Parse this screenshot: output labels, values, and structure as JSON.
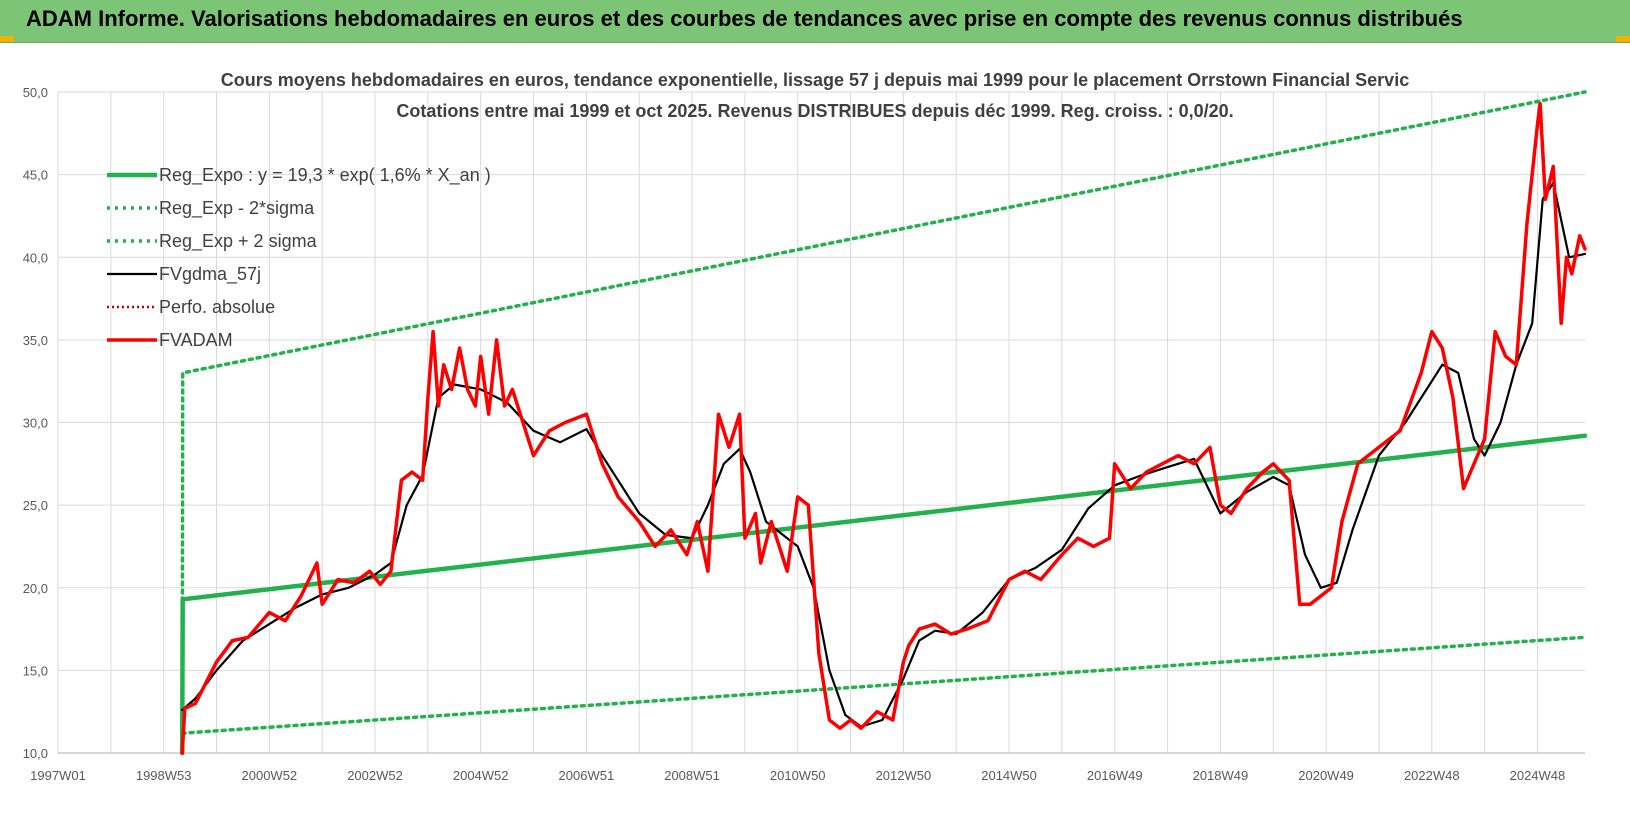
{
  "header": {
    "title": "ADAM Informe. Valorisations hebdomadaires en euros et des courbes de tendances avec prise en compte des revenus connus distribués"
  },
  "colors": {
    "header_bg": "#7cc576",
    "reg_expo": "#22b14c",
    "fvgdma": "#000000",
    "perfo": "#c00000",
    "fvadam": "#ff0000",
    "grid": "#d9d9d9"
  },
  "chart_data": {
    "type": "line",
    "title_line1": "Cours moyens hebdomadaires en euros, tendance exponentielle, lissage 57 j depuis mai 1999 pour le placement Orrstown Financial Servic",
    "title_line2": "Cotations entre mai 1999 et oct 2025. Revenus DISTRIBUES depuis déc 1999. Reg. croiss. : 0,0/20.",
    "xlabel": "",
    "ylabel": "",
    "ylim": [
      10,
      50
    ],
    "xlim": [
      1997.0,
      2025.9
    ],
    "grid": true,
    "legend_position": "top-left",
    "y_ticks": [
      "10,0",
      "15,0",
      "20,0",
      "25,0",
      "30,0",
      "35,0",
      "40,0",
      "45,0",
      "50,0"
    ],
    "x_ticks": [
      {
        "label": "1997W01",
        "x": 1997.0
      },
      {
        "label": "1998W53",
        "x": 1999.0
      },
      {
        "label": "2000W52",
        "x": 2001.0
      },
      {
        "label": "2002W52",
        "x": 2003.0
      },
      {
        "label": "2004W52",
        "x": 2005.0
      },
      {
        "label": "2006W51",
        "x": 2007.0
      },
      {
        "label": "2008W51",
        "x": 2009.0
      },
      {
        "label": "2010W50",
        "x": 2011.0
      },
      {
        "label": "2012W50",
        "x": 2013.0
      },
      {
        "label": "2014W50",
        "x": 2015.0
      },
      {
        "label": "2016W49",
        "x": 2017.0
      },
      {
        "label": "2018W49",
        "x": 2019.0
      },
      {
        "label": "2020W49",
        "x": 2021.0
      },
      {
        "label": "2022W48",
        "x": 2023.0
      },
      {
        "label": "2024W48",
        "x": 2025.0
      }
    ],
    "series": [
      {
        "name": "Reg_Expo : y = 19,3 * exp( 1,6% *  X_an )",
        "style": "solid-green",
        "x": [
          1999.35,
          1999.36,
          2025.9
        ],
        "y": [
          10.0,
          19.3,
          29.2
        ]
      },
      {
        "name": "Reg_Exp - 2*sigma",
        "style": "dotted-green",
        "x": [
          1999.35,
          2025.9
        ],
        "y": [
          11.2,
          17.0
        ]
      },
      {
        "name": "Reg_Exp + 2 sigma",
        "style": "dotted-green",
        "x": [
          1999.35,
          1999.36,
          2025.9
        ],
        "y": [
          10.0,
          33.0,
          50.0
        ]
      },
      {
        "name": "FVgdma_57j",
        "style": "solid-black",
        "x": [
          1999.35,
          1999.6,
          2000.0,
          2000.5,
          2001.0,
          2001.5,
          2002.0,
          2002.5,
          2003.0,
          2003.3,
          2003.6,
          2003.9,
          2004.2,
          2004.5,
          2005.0,
          2005.5,
          2006.0,
          2006.5,
          2007.0,
          2007.3,
          2007.6,
          2008.0,
          2008.5,
          2009.0,
          2009.3,
          2009.6,
          2009.9,
          2010.1,
          2010.4,
          2010.8,
          2011.0,
          2011.3,
          2011.6,
          2011.9,
          2012.2,
          2012.6,
          2013.0,
          2013.3,
          2013.6,
          2014.0,
          2014.5,
          2015.0,
          2015.5,
          2016.0,
          2016.5,
          2017.0,
          2017.5,
          2018.0,
          2018.5,
          2019.0,
          2019.5,
          2020.0,
          2020.3,
          2020.6,
          2020.9,
          2021.2,
          2021.5,
          2022.0,
          2022.5,
          2023.0,
          2023.2,
          2023.5,
          2023.8,
          2024.0,
          2024.3,
          2024.6,
          2024.9,
          2025.1,
          2025.3,
          2025.6,
          2025.9
        ],
        "y": [
          12.6,
          13.3,
          15.0,
          16.8,
          17.8,
          18.8,
          19.6,
          20.0,
          20.8,
          21.5,
          25.0,
          26.8,
          31.5,
          32.3,
          32.0,
          31.2,
          29.5,
          28.8,
          29.6,
          28.0,
          26.5,
          24.5,
          23.2,
          23.0,
          25.0,
          27.5,
          28.4,
          27.0,
          24.0,
          23.0,
          22.5,
          20.0,
          15.0,
          12.3,
          11.6,
          12.0,
          14.5,
          16.8,
          17.4,
          17.2,
          18.5,
          20.5,
          21.2,
          22.3,
          24.8,
          26.2,
          26.8,
          27.3,
          27.8,
          24.5,
          25.8,
          26.7,
          26.2,
          22.0,
          20.0,
          20.3,
          23.5,
          28.0,
          30.0,
          32.5,
          33.5,
          33.0,
          29.0,
          28.0,
          30.0,
          33.5,
          36.0,
          43.5,
          44.5,
          40.0,
          40.2
        ]
      },
      {
        "name": "Perfo. absolue",
        "style": "dotted-darkred",
        "x": [],
        "y": []
      },
      {
        "name": "FVADAM",
        "style": "solid-red",
        "x": [
          1999.35,
          1999.4,
          1999.6,
          2000.0,
          2000.3,
          2000.6,
          2001.0,
          2001.3,
          2001.6,
          2001.9,
          2002.0,
          2002.3,
          2002.6,
          2002.9,
          2003.1,
          2003.3,
          2003.5,
          2003.7,
          2003.9,
          2004.0,
          2004.1,
          2004.2,
          2004.3,
          2004.45,
          2004.6,
          2004.75,
          2004.9,
          2005.0,
          2005.15,
          2005.3,
          2005.45,
          2005.6,
          2006.0,
          2006.3,
          2006.6,
          2007.0,
          2007.3,
          2007.6,
          2008.0,
          2008.3,
          2008.6,
          2008.9,
          2009.1,
          2009.3,
          2009.5,
          2009.7,
          2009.9,
          2010.0,
          2010.2,
          2010.3,
          2010.5,
          2010.8,
          2011.0,
          2011.2,
          2011.4,
          2011.6,
          2011.8,
          2012.0,
          2012.2,
          2012.5,
          2012.8,
          2013.0,
          2013.1,
          2013.3,
          2013.6,
          2013.9,
          2014.2,
          2014.6,
          2015.0,
          2015.3,
          2015.6,
          2016.0,
          2016.3,
          2016.6,
          2016.9,
          2017.0,
          2017.3,
          2017.6,
          2017.9,
          2018.2,
          2018.5,
          2018.8,
          2019.0,
          2019.2,
          2019.5,
          2019.8,
          2020.0,
          2020.3,
          2020.5,
          2020.7,
          2020.9,
          2021.1,
          2021.3,
          2021.6,
          2022.0,
          2022.4,
          2022.8,
          2023.0,
          2023.2,
          2023.4,
          2023.6,
          2023.8,
          2024.0,
          2024.2,
          2024.4,
          2024.6,
          2024.8,
          2025.0,
          2025.05,
          2025.15,
          2025.3,
          2025.45,
          2025.55,
          2025.65,
          2025.8,
          2025.9
        ],
        "y": [
          10.0,
          12.7,
          13.0,
          15.5,
          16.8,
          17.0,
          18.5,
          18.0,
          19.5,
          21.5,
          19.0,
          20.5,
          20.3,
          21.0,
          20.2,
          21.0,
          26.5,
          27.0,
          26.5,
          31.5,
          35.5,
          31.0,
          33.5,
          32.0,
          34.5,
          32.0,
          31.0,
          34.0,
          30.5,
          35.0,
          31.0,
          32.0,
          28.0,
          29.5,
          30.0,
          30.5,
          27.5,
          25.5,
          24.0,
          22.5,
          23.5,
          22.0,
          24.0,
          21.0,
          30.5,
          28.5,
          30.5,
          23.0,
          24.5,
          21.5,
          24.0,
          21.0,
          25.5,
          25.0,
          16.0,
          12.0,
          11.5,
          12.0,
          11.5,
          12.5,
          12.0,
          15.5,
          16.5,
          17.5,
          17.8,
          17.2,
          17.5,
          18.0,
          20.5,
          21.0,
          20.5,
          22.0,
          23.0,
          22.5,
          23.0,
          27.5,
          26.0,
          27.0,
          27.5,
          28.0,
          27.5,
          28.5,
          25.0,
          24.5,
          26.0,
          27.0,
          27.5,
          26.5,
          19.0,
          19.0,
          19.5,
          20.0,
          24.0,
          27.5,
          28.5,
          29.5,
          33.0,
          35.5,
          34.5,
          31.5,
          26.0,
          27.5,
          29.0,
          35.5,
          34.0,
          33.5,
          42.0,
          48.0,
          49.3,
          43.5,
          45.5,
          36.0,
          40.0,
          39.0,
          41.3,
          40.5
        ]
      }
    ]
  }
}
